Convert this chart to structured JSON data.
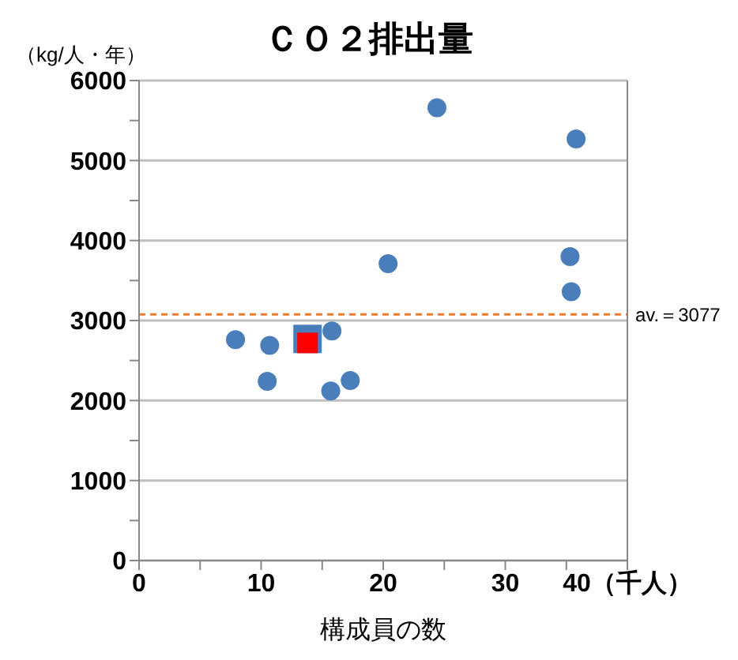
{
  "chart_data": {
    "type": "scatter",
    "title": "ＣＯ２排出量",
    "xlabel": "構成員の数",
    "ylabel": "（kg/人・年）",
    "series": [
      {
        "color": "#4a7ebb",
        "marker": "circle",
        "x": [
          7.9,
          10.7,
          10.5,
          15.8,
          15.7,
          17.3,
          20.4,
          24.4,
          35.3,
          35.4,
          35.8
        ],
        "values": [
          2760,
          2690,
          2240,
          2870,
          2120,
          2250,
          3710,
          5660,
          3800,
          3360,
          5270
        ]
      },
      {
        "color": "#4a7ebb",
        "marker": "square",
        "x": [
          13.8
        ],
        "values": [
          2770
        ]
      },
      {
        "color": "#ff0000",
        "marker": "square",
        "x": [
          13.8
        ],
        "values": [
          2720
        ]
      }
    ],
    "xlim": [
      0,
      40
    ],
    "xticks": [
      0,
      {
        "value": 5,
        "label": null
      },
      10,
      {
        "value": 15,
        "label": null
      },
      20,
      {
        "value": 25,
        "label": null
      },
      30,
      {
        "value": 35,
        "label": null
      },
      {
        "value": 40,
        "label": "40（千人）"
      }
    ],
    "ylim": [
      0,
      6000
    ],
    "yticks": [
      0,
      {
        "value": 500,
        "label": null
      },
      1000,
      {
        "value": 1500,
        "label": null
      },
      2000,
      {
        "value": 2500,
        "label": null
      },
      3000,
      {
        "value": 3500,
        "label": null
      },
      4000,
      {
        "value": 4500,
        "label": null
      },
      5000,
      {
        "value": 5500,
        "label": null
      },
      6000
    ],
    "grid": "y",
    "ref_lines": [
      {
        "axis": "y",
        "value": 3077,
        "label": "av.＝3077",
        "color": "#ed7d31",
        "line_style": "dashed"
      }
    ]
  }
}
